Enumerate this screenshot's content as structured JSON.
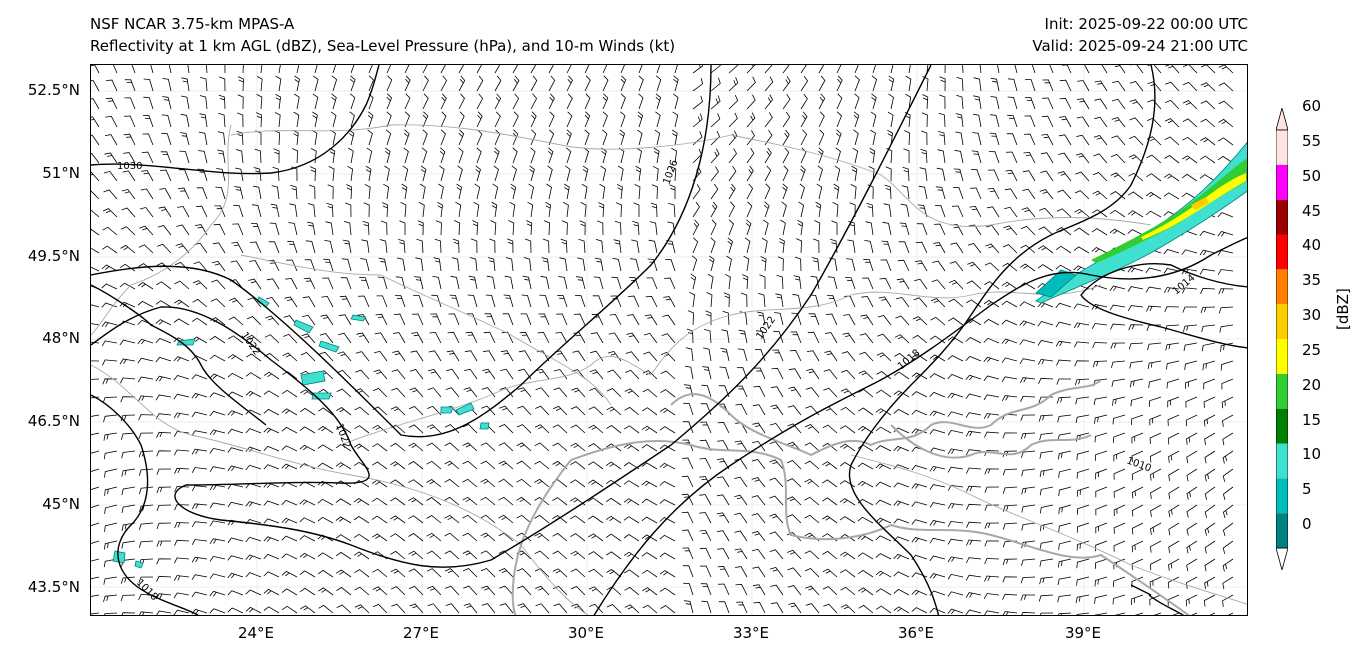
{
  "header": {
    "model": "NSF NCAR 3.75-km MPAS-A",
    "fields": "Reflectivity at 1 km AGL (dBZ), Sea-Level Pressure (hPa), and 10-m Winds (kt)",
    "init": "Init: 2025-09-22 00:00 UTC",
    "valid": "Valid: 2025-09-24 21:00 UTC"
  },
  "map": {
    "lat_labels": [
      "52.5°N",
      "51°N",
      "49.5°N",
      "48°N",
      "46.5°N",
      "45°N",
      "43.5°N"
    ],
    "lon_labels": [
      "24°E",
      "27°E",
      "30°E",
      "33°E",
      "36°E",
      "39°E"
    ],
    "isobar_labels": [
      "1030",
      "1026",
      "1022",
      "1022",
      "1022",
      "1018",
      "1014",
      "1010",
      "1018"
    ],
    "colors": {
      "isobar": "#000000",
      "border": "#a8a8a8",
      "grid": "#eeeeee"
    }
  },
  "colorbar": {
    "unit": "[dBZ]",
    "ticks": [
      "0",
      "5",
      "10",
      "15",
      "20",
      "25",
      "30",
      "35",
      "40",
      "45",
      "50",
      "55",
      "60"
    ],
    "colors": [
      "#ffffff",
      "#008080",
      "#00bcbc",
      "#40e0d0",
      "#008000",
      "#32cd32",
      "#ffff00",
      "#ffcc00",
      "#ff8000",
      "#ff0000",
      "#990000",
      "#ff00ff",
      "#ffe4e1"
    ]
  }
}
